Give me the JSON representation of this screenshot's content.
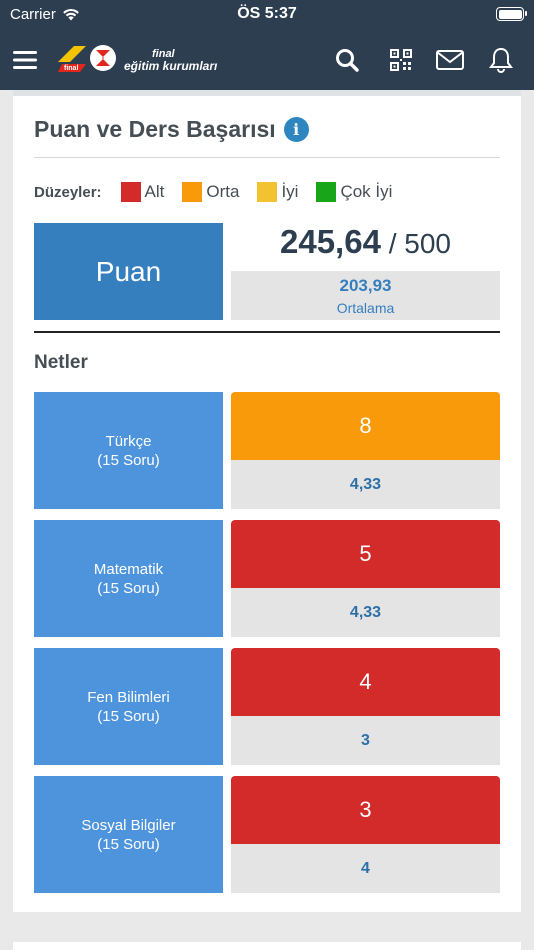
{
  "status": {
    "carrier": "Carrier",
    "time": "ÖS 5:37"
  },
  "brand": {
    "line1": "final",
    "line2": "eğitim kurumları",
    "badge": "final"
  },
  "nav_icons": [
    "menu-icon",
    "search-icon",
    "qr-code-icon",
    "mail-icon",
    "bell-icon"
  ],
  "card": {
    "title": "Puan ve Ders Başarısı",
    "info": "i",
    "levels_label": "Düzeyler:",
    "levels": [
      {
        "label": "Alt",
        "color": "#d32a2a"
      },
      {
        "label": "Orta",
        "color": "#f89a0a"
      },
      {
        "label": "İyi",
        "color": "#f2c230"
      },
      {
        "label": "Çok İyi",
        "color": "#19a519"
      }
    ],
    "puan_label": "Puan",
    "score": "245,64",
    "max": " / 500",
    "average": "203,93",
    "average_label": "Ortalama",
    "netler_title": "Netler"
  },
  "subjects": [
    {
      "name": "Türkçe",
      "questions": "(15 Soru)",
      "net": "8",
      "avg": "4,33",
      "level_color": "#f89a0a"
    },
    {
      "name": "Matematik",
      "questions": "(15 Soru)",
      "net": "5",
      "avg": "4,33",
      "level_color": "#d32a2a"
    },
    {
      "name": "Fen Bilimleri",
      "questions": "(15 Soru)",
      "net": "4",
      "avg": "3",
      "level_color": "#d32a2a"
    },
    {
      "name": "Sosyal Bilgiler",
      "questions": "(15 Soru)",
      "net": "3",
      "avg": "4",
      "level_color": "#d32a2a"
    }
  ]
}
